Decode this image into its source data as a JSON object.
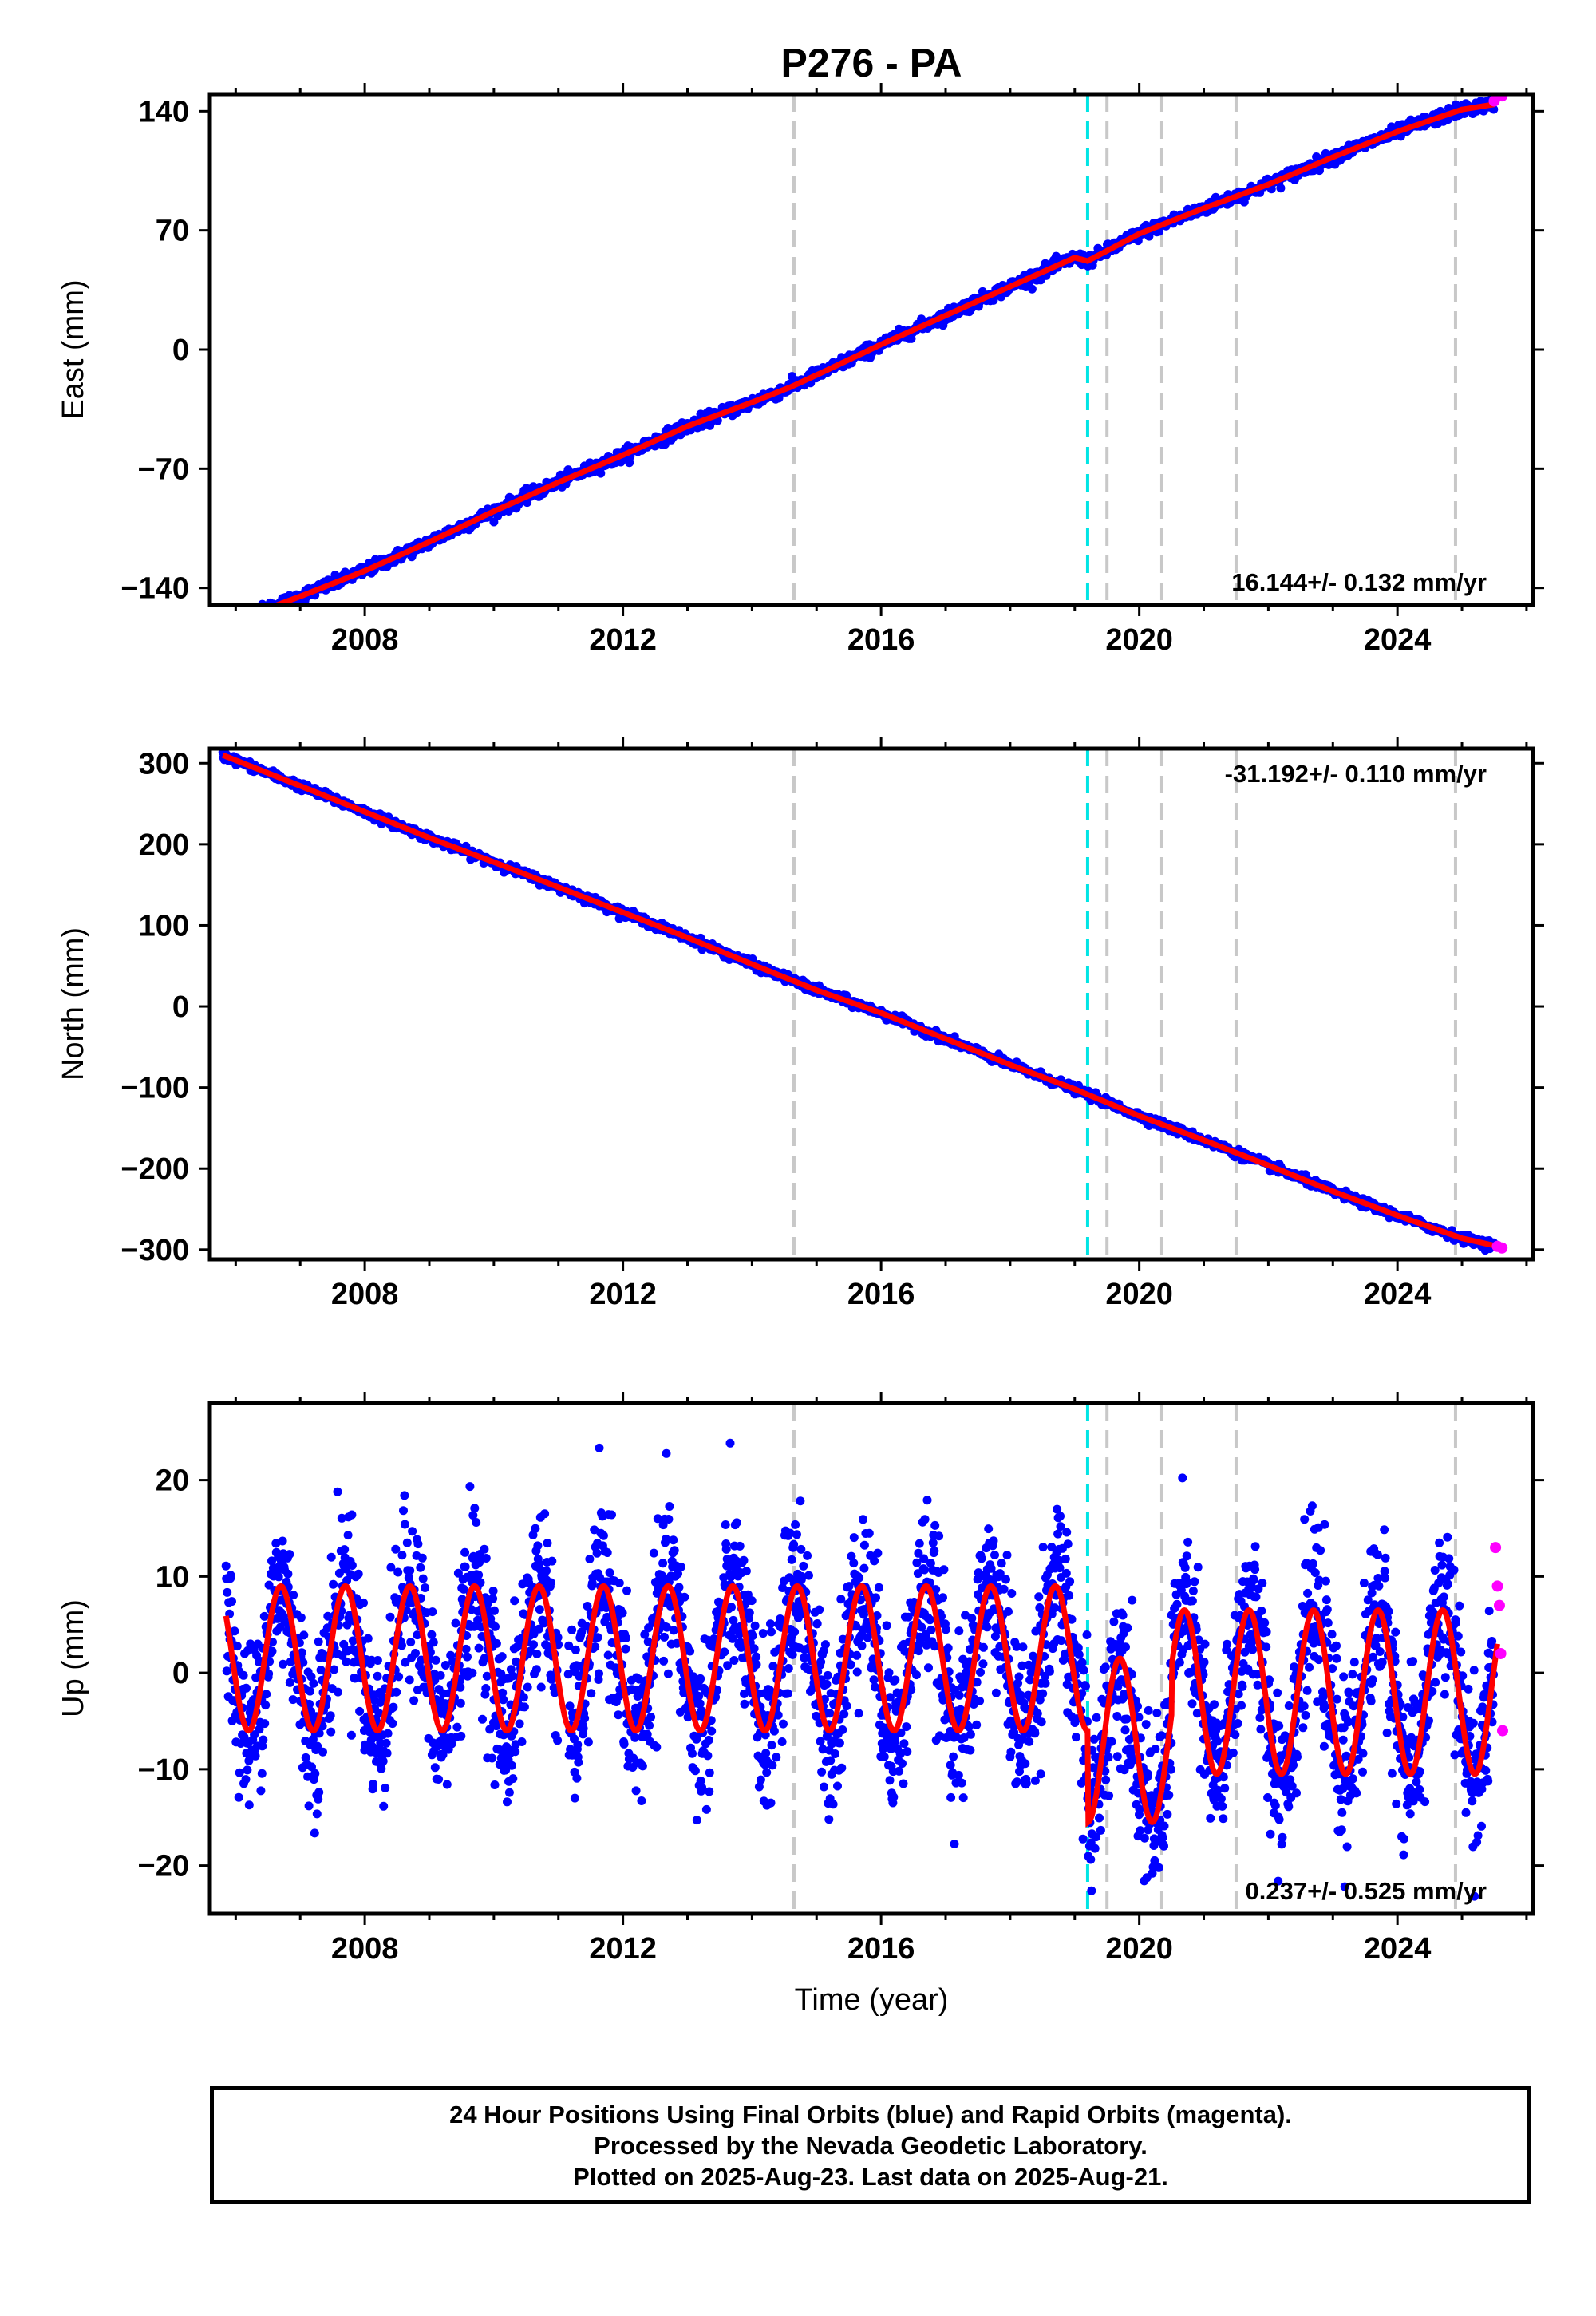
{
  "title": "P276 - PA",
  "xlabel": "Time (year)",
  "x_ticks": [
    2008,
    2012,
    2016,
    2020,
    2024
  ],
  "event_lines": {
    "gray": [
      2014.65,
      2019.5,
      2020.35,
      2021.5,
      2024.9
    ],
    "cyan": [
      2019.2
    ],
    "gray_color": "#c8c8c8",
    "cyan_color": "#00e5e5"
  },
  "colors": {
    "final": "#0000ff",
    "rapid": "#ff00ff",
    "model": "#ff0000"
  },
  "chart_data": [
    {
      "type": "scatter",
      "ylabel": "East (mm)",
      "xlim": [
        2005.6,
        2026.1
      ],
      "ylim": [
        -150,
        150
      ],
      "yticks": [
        -140,
        -70,
        0,
        70,
        140
      ],
      "rate_label": "16.144+/- 0.132 mm/yr",
      "rate_position": "bottom-right",
      "series": [
        {
          "name": "Final Orbits (blue)",
          "x": [
            2005.8,
            2006.0,
            2007.0,
            2008.0,
            2009.0,
            2010.0,
            2011.0,
            2012.0,
            2013.0,
            2014.0,
            2014.6,
            2015.0,
            2016.0,
            2017.0,
            2018.0,
            2019.0,
            2019.2,
            2020.0,
            2021.0,
            2022.0,
            2023.0,
            2024.0,
            2025.0,
            2025.5
          ],
          "y": [
            -161,
            -159,
            -145,
            -130,
            -113,
            -95,
            -78,
            -62,
            -45,
            -31,
            -22,
            -15,
            3,
            20,
            37,
            54,
            52,
            68,
            83,
            97,
            113,
            128,
            141,
            144
          ]
        },
        {
          "name": "Rapid Orbits (magenta)",
          "x": [
            2025.5,
            2025.62
          ],
          "y": [
            146,
            149
          ]
        },
        {
          "name": "Model",
          "x": [
            2005.8,
            2026.05
          ],
          "y": [
            -161,
            147
          ]
        }
      ]
    },
    {
      "type": "scatter",
      "ylabel": "North (mm)",
      "xlim": [
        2005.6,
        2026.1
      ],
      "ylim": [
        -312,
        318
      ],
      "yticks": [
        -300,
        -200,
        -100,
        0,
        100,
        200,
        300
      ],
      "rate_label": "-31.192+/- 0.110 mm/yr",
      "rate_position": "top-right",
      "series": [
        {
          "name": "Final Orbits (blue)",
          "x": [
            2005.8,
            2007.0,
            2008.0,
            2009.0,
            2010.0,
            2011.0,
            2012.0,
            2013.0,
            2014.0,
            2015.0,
            2016.0,
            2017.0,
            2018.0,
            2019.0,
            2020.0,
            2021.0,
            2022.0,
            2023.0,
            2024.0,
            2025.0,
            2025.5
          ],
          "y": [
            310,
            272,
            240,
            208,
            178,
            147,
            116,
            85,
            52,
            20,
            -8,
            -40,
            -72,
            -102,
            -135,
            -165,
            -196,
            -228,
            -258,
            -286,
            -295
          ]
        },
        {
          "name": "Rapid Orbits (magenta)",
          "x": [
            2025.55,
            2025.62
          ],
          "y": [
            -296,
            -298
          ]
        },
        {
          "name": "Model",
          "x": [
            2005.8,
            2026.05
          ],
          "y": [
            310,
            -298
          ]
        }
      ]
    },
    {
      "type": "scatter",
      "ylabel": "Up (mm)",
      "xlim": [
        2005.6,
        2026.1
      ],
      "ylim": [
        -25,
        28
      ],
      "yticks": [
        -20,
        -10,
        0,
        10,
        20
      ],
      "rate_label": "0.237+/- 0.525 mm/yr",
      "rate_position": "bottom-right",
      "series": [
        {
          "name": "Final Orbits (blue)",
          "note_range": "scatter about seasonal model, roughly -24 to 27 mm"
        },
        {
          "name": "Rapid Orbits (magenta)",
          "x": [
            2025.52,
            2025.55,
            2025.58,
            2025.6,
            2025.63
          ],
          "y": [
            13,
            9,
            7,
            2,
            -6
          ]
        },
        {
          "name": "Model",
          "model": "seasonal annual oscillation, amplitude ~7-10 mm, offset at 2019.2"
        }
      ]
    }
  ],
  "footer": {
    "line1": "24 Hour Positions Using Final Orbits (blue) and Rapid Orbits (magenta).",
    "line2": "Processed by the Nevada Geodetic Laboratory.",
    "line3": "Plotted on 2025-Aug-23. Last data on 2025-Aug-21."
  }
}
